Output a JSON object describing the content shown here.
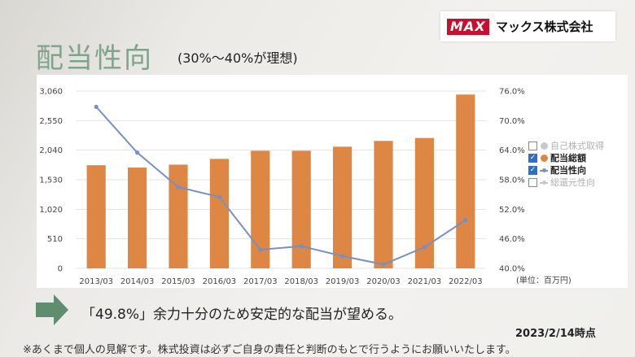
{
  "header": {
    "title": "配当性向",
    "subtitle": "(30%〜40%が理想)"
  },
  "logo": {
    "brand": "MAX",
    "company": "マックス株式会社"
  },
  "chart_data": {
    "type": "bar",
    "categories": [
      "2013/03",
      "2014/03",
      "2015/03",
      "2016/03",
      "2017/03",
      "2018/03",
      "2019/03",
      "2020/03",
      "2021/03",
      "2022/03"
    ],
    "series": [
      {
        "name": "配当総額",
        "type": "bar",
        "axis": "left",
        "color": "#de8644",
        "values": [
          1780,
          1740,
          1790,
          1890,
          2030,
          2030,
          2100,
          2200,
          2250,
          3000
        ]
      },
      {
        "name": "配当性向",
        "type": "line",
        "axis": "right",
        "color": "#7590c4",
        "values": [
          72.8,
          63.5,
          56.5,
          54.5,
          43.8,
          44.5,
          42.5,
          40.8,
          44.3,
          49.8
        ]
      }
    ],
    "y_left": {
      "ticks": [
        "3,060",
        "2,550",
        "2,040",
        "1,530",
        "1,020",
        "510",
        "0"
      ],
      "range": [
        0,
        3060
      ]
    },
    "y_right": {
      "ticks": [
        "76.0%",
        "70.0%",
        "64.0%",
        "58.0%",
        "52.0%",
        "46.0%",
        "40.0%"
      ],
      "range": [
        40,
        76
      ]
    },
    "unit_label": "(単位：百万円)",
    "legend": [
      {
        "label": "自己株式取得",
        "checked": false,
        "marker": "dot",
        "color": "#c8c8c8",
        "text_color": "#b0b0b0"
      },
      {
        "label": "配当総額",
        "checked": true,
        "marker": "dot",
        "color": "#de8644",
        "text_color": "#222222"
      },
      {
        "label": "配当性向",
        "checked": true,
        "marker": "line",
        "color": "#7590c4",
        "text_color": "#222222"
      },
      {
        "label": "総還元性向",
        "checked": false,
        "marker": "line",
        "color": "#c8c8c8",
        "text_color": "#b0b0b0"
      }
    ],
    "grid": true,
    "legend_position": "right"
  },
  "footer": {
    "statement": "「49.8%」余力十分のため安定的な配当が望める。",
    "date": "2023/2/14時点",
    "note": "※あくまで個人の見解です。株式投資は必ずご自身の責任と判断のもとで行うようにお願いいたします。"
  }
}
